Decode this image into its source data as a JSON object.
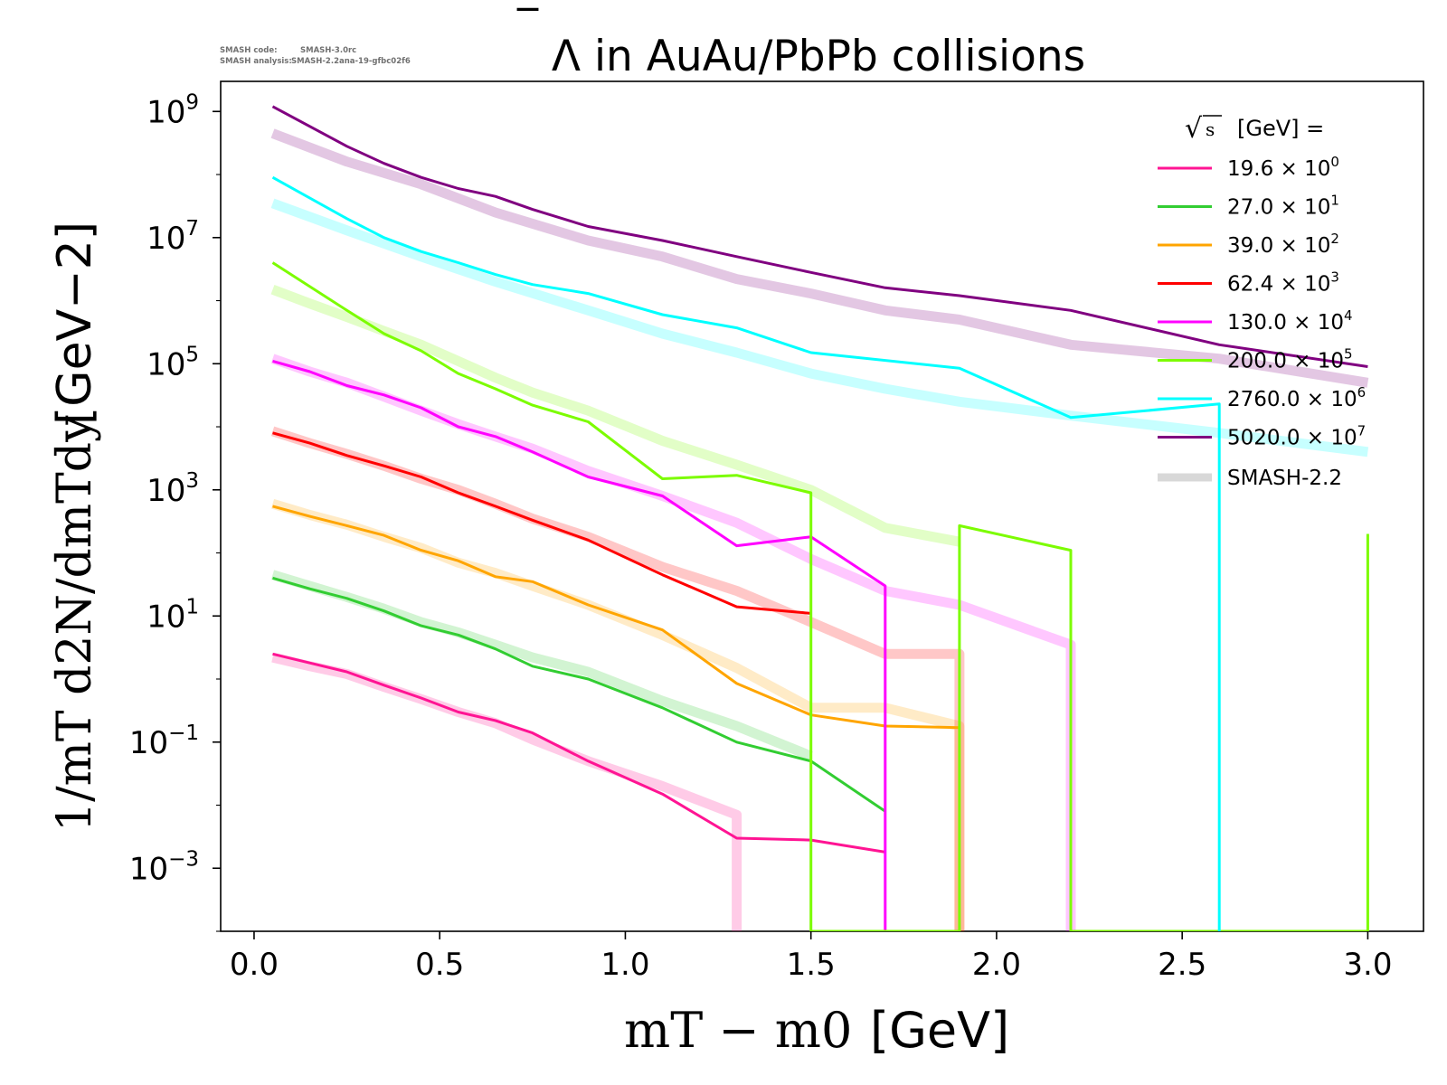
{
  "chart_data": {
    "type": "line",
    "y_scale": "log",
    "title": "Λ in AuAu/PbPb collisions",
    "title_bar_char": "‾",
    "watermark": {
      "code_label": "SMASH code:",
      "code_value": "SMASH-3.0rc",
      "analysis_label": "SMASH analysis:",
      "analysis_value": "SMASH-2.2ana-19-gfbc02f6"
    },
    "xlabel": "m_T − m_0 [GeV]",
    "xlabel_math": "mT − m0",
    "xlabel_unit": "[GeV]",
    "ylabel": "1/m_T d²N/dm_Tdy [GeV⁻²]",
    "ylabel_math": "1/mT d2N/dmTdy",
    "ylabel_unit": "[GeV−2]",
    "xlim": [
      -0.09,
      3.15
    ],
    "ylim": [
      0.0001,
      3000000000.0
    ],
    "xticks": [
      "0.0",
      "0.5",
      "1.0",
      "1.5",
      "2.0",
      "2.5",
      "3.0"
    ],
    "xtick_values": [
      0.0,
      0.5,
      1.0,
      1.5,
      2.0,
      2.5,
      3.0
    ],
    "ytick_exponents": [
      9,
      7,
      5,
      3,
      1,
      -1,
      -3
    ],
    "ytick_base": "10",
    "legend": {
      "title": "√s  [GeV] =",
      "title_sqrt": "√",
      "title_var": "s",
      "title_rest": "[GeV] =",
      "placement": "top-right",
      "model_label": "SMASH-2.2"
    },
    "series": [
      {
        "name": "19.6 × 10⁰",
        "energy": "19.6",
        "exponent": "0",
        "color": "#ff1493",
        "x": [
          0.05,
          0.15,
          0.25,
          0.35,
          0.45,
          0.55,
          0.65,
          0.75,
          0.9,
          1.1,
          1.3,
          1.5,
          1.7
        ],
        "y": [
          2.5,
          1.8,
          1.3,
          0.8,
          0.5,
          0.3,
          0.22,
          0.14,
          0.05,
          0.015,
          0.003,
          0.0028,
          0.0018
        ],
        "model_x": [
          0.05,
          0.15,
          0.25,
          0.35,
          0.45,
          0.55,
          0.65,
          0.75,
          0.9,
          1.1,
          1.3,
          1.3
        ],
        "model_y": [
          2.2,
          1.6,
          1.2,
          0.75,
          0.48,
          0.3,
          0.2,
          0.11,
          0.05,
          0.02,
          0.007,
          0.0001
        ]
      },
      {
        "name": "27.0 × 10¹",
        "energy": "27.0",
        "exponent": "1",
        "color": "#32cd32",
        "x": [
          0.05,
          0.15,
          0.25,
          0.35,
          0.45,
          0.55,
          0.65,
          0.75,
          0.9,
          1.1,
          1.3,
          1.5,
          1.7
        ],
        "y": [
          40,
          27,
          19,
          12,
          7,
          5,
          3,
          1.6,
          1.0,
          0.35,
          0.1,
          0.05,
          0.008
        ],
        "model_x": [
          0.05,
          0.15,
          0.25,
          0.35,
          0.45,
          0.55,
          0.65,
          0.75,
          0.9,
          1.1,
          1.3,
          1.5
        ],
        "model_y": [
          45,
          30,
          20,
          13,
          8,
          5.5,
          3.5,
          2.2,
          1.3,
          0.45,
          0.18,
          0.06
        ]
      },
      {
        "name": "39.0 × 10²",
        "energy": "39.0",
        "exponent": "2",
        "color": "#ffa500",
        "x": [
          0.05,
          0.15,
          0.25,
          0.35,
          0.45,
          0.55,
          0.65,
          0.75,
          0.9,
          1.1,
          1.3,
          1.5,
          1.7,
          1.9
        ],
        "y": [
          550,
          380,
          270,
          190,
          110,
          75,
          42,
          35,
          15,
          6,
          0.85,
          0.27,
          0.18,
          0.17
        ],
        "model_x": [
          0.05,
          0.15,
          0.25,
          0.35,
          0.45,
          0.55,
          0.65,
          0.75,
          0.9,
          1.1,
          1.3,
          1.5,
          1.7,
          1.9,
          1.9
        ],
        "model_y": [
          600,
          400,
          280,
          180,
          120,
          70,
          48,
          30,
          15,
          5,
          1.5,
          0.35,
          0.35,
          0.18,
          0.0001
        ]
      },
      {
        "name": "62.4 × 10³",
        "energy": "62.4",
        "exponent": "3",
        "color": "#ff0000",
        "x": [
          0.05,
          0.15,
          0.25,
          0.35,
          0.45,
          0.55,
          0.65,
          0.75,
          0.9,
          1.1,
          1.3,
          1.5
        ],
        "y": [
          8000,
          5500,
          3500,
          2400,
          1600,
          900,
          550,
          330,
          160,
          45,
          14,
          11
        ],
        "model_x": [
          0.05,
          0.15,
          0.25,
          0.35,
          0.45,
          0.55,
          0.65,
          0.75,
          0.9,
          1.1,
          1.3,
          1.5,
          1.7,
          1.9,
          1.9
        ],
        "model_y": [
          8500,
          5500,
          3700,
          2400,
          1500,
          1000,
          600,
          350,
          180,
          60,
          25,
          8,
          2.5,
          2.5,
          0.0001
        ]
      },
      {
        "name": "130.0 × 10⁴",
        "energy": "130.0",
        "exponent": "4",
        "color": "#ff00ff",
        "x": [
          0.05,
          0.15,
          0.25,
          0.35,
          0.45,
          0.55,
          0.65,
          0.75,
          0.9,
          1.1,
          1.3,
          1.5,
          1.7,
          1.7
        ],
        "y": [
          110000,
          75000,
          45000,
          32000,
          20000,
          10000,
          7000,
          4000,
          1600,
          800,
          130,
          180,
          30,
          0.0001
        ],
        "model_x": [
          0.05,
          0.15,
          0.25,
          0.35,
          0.45,
          0.55,
          0.65,
          0.75,
          0.9,
          1.1,
          1.3,
          1.5,
          1.7,
          1.9,
          2.2,
          2.2
        ],
        "model_y": [
          120000,
          75000,
          50000,
          30000,
          18000,
          11000,
          7000,
          4500,
          2000,
          800,
          300,
          80,
          25,
          15,
          3.5,
          0.0001
        ]
      },
      {
        "name": "200.0 × 10⁵",
        "energy": "200.0",
        "exponent": "5",
        "color": "#7cfc00",
        "x": [
          0.05,
          0.25,
          0.35,
          0.45,
          0.55,
          0.65,
          0.75,
          0.9,
          1.1,
          1.3,
          1.5,
          1.5,
          1.9,
          1.9,
          2.2,
          2.2,
          3.0,
          3.0
        ],
        "y": [
          4000000,
          700000,
          300000,
          160000,
          70000,
          40000,
          22000,
          12000,
          1500,
          1700,
          900,
          0.0001,
          0.0001,
          270,
          110,
          0.0001,
          0.0001,
          200
        ],
        "model_x": [
          0.05,
          0.15,
          0.25,
          0.35,
          0.45,
          0.55,
          0.65,
          0.75,
          0.9,
          1.1,
          1.3,
          1.5,
          1.7,
          1.9
        ],
        "model_y": [
          1500000,
          900000,
          550000,
          330000,
          200000,
          110000,
          60000,
          35000,
          18000,
          6000,
          2500,
          1000,
          250,
          150
        ]
      },
      {
        "name": "2760.0 × 10⁶",
        "energy": "2760.0",
        "exponent": "6",
        "color": "#00ffff",
        "x": [
          0.05,
          0.25,
          0.35,
          0.45,
          0.55,
          0.65,
          0.75,
          0.9,
          1.1,
          1.3,
          1.5,
          1.9,
          2.2,
          2.6,
          2.6
        ],
        "y": [
          90000000,
          20000000,
          10000000,
          6000000,
          4000000,
          2600000,
          1800000,
          1300000,
          600000,
          370000,
          150000,
          85000,
          14000,
          23000,
          0.0001
        ],
        "model_x": [
          0.05,
          0.25,
          0.45,
          0.65,
          0.9,
          1.1,
          1.3,
          1.5,
          1.7,
          1.9,
          2.2,
          2.6,
          3.0
        ],
        "model_y": [
          35000000,
          13000000,
          5000000,
          2000000,
          700000,
          300000,
          150000,
          70000,
          40000,
          25000,
          15000,
          8000,
          4000
        ]
      },
      {
        "name": "5020.0 × 10⁷",
        "energy": "5020.0",
        "exponent": "7",
        "color": "#800080",
        "x": [
          0.05,
          0.25,
          0.35,
          0.45,
          0.55,
          0.65,
          0.75,
          0.9,
          1.1,
          1.3,
          1.5,
          1.7,
          1.9,
          2.2,
          2.6,
          3.0
        ],
        "y": [
          1200000000,
          280000000,
          150000000,
          90000000,
          60000000,
          45000000,
          28000000,
          15000000,
          9000000,
          5000000,
          2800000,
          1600000,
          1200000,
          700000,
          200000,
          90000
        ],
        "model_x": [
          0.05,
          0.25,
          0.45,
          0.65,
          0.9,
          1.1,
          1.3,
          1.5,
          1.7,
          1.9,
          2.2,
          2.6,
          3.0
        ],
        "model_y": [
          450000000,
          160000000,
          70000000,
          25000000,
          9000000,
          5000000,
          2200000,
          1300000,
          700000,
          500000,
          200000,
          120000,
          50000
        ]
      }
    ]
  }
}
